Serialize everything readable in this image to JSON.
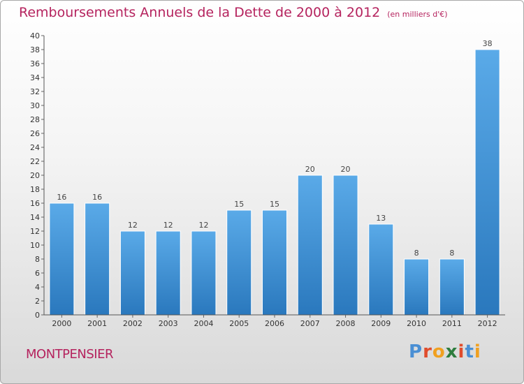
{
  "header": {
    "title": "Remboursements Annuels de la Dette de 2000 à 2012",
    "subtitle": "(en milliers d'€)"
  },
  "footer": {
    "commune": "MONTPENSIER",
    "logo_text": "Proxiti",
    "logo_colors": [
      "#4a8fd4",
      "#e04c2c",
      "#f0a020",
      "#2e7d3e",
      "#e04c2c",
      "#4a8fd4",
      "#f0a020"
    ]
  },
  "chart_data": {
    "type": "bar",
    "categories": [
      "2000",
      "2001",
      "2002",
      "2003",
      "2004",
      "2005",
      "2006",
      "2007",
      "2008",
      "2009",
      "2010",
      "2011",
      "2012"
    ],
    "values": [
      16,
      16,
      12,
      12,
      12,
      15,
      15,
      20,
      20,
      13,
      8,
      8,
      38
    ],
    "data_labels": [
      "16",
      "16",
      "12",
      "12",
      "12",
      "15",
      "15",
      "20",
      "20",
      "13",
      "8",
      "8",
      "38"
    ],
    "yticks": [
      "0",
      "2",
      "4",
      "6",
      "8",
      "10",
      "12",
      "14",
      "16",
      "18",
      "20",
      "22",
      "24",
      "26",
      "28",
      "30",
      "32",
      "34",
      "36",
      "38",
      "40"
    ],
    "ylim": [
      0,
      40
    ],
    "grid": false,
    "bar_color": "#3d8fd6"
  }
}
